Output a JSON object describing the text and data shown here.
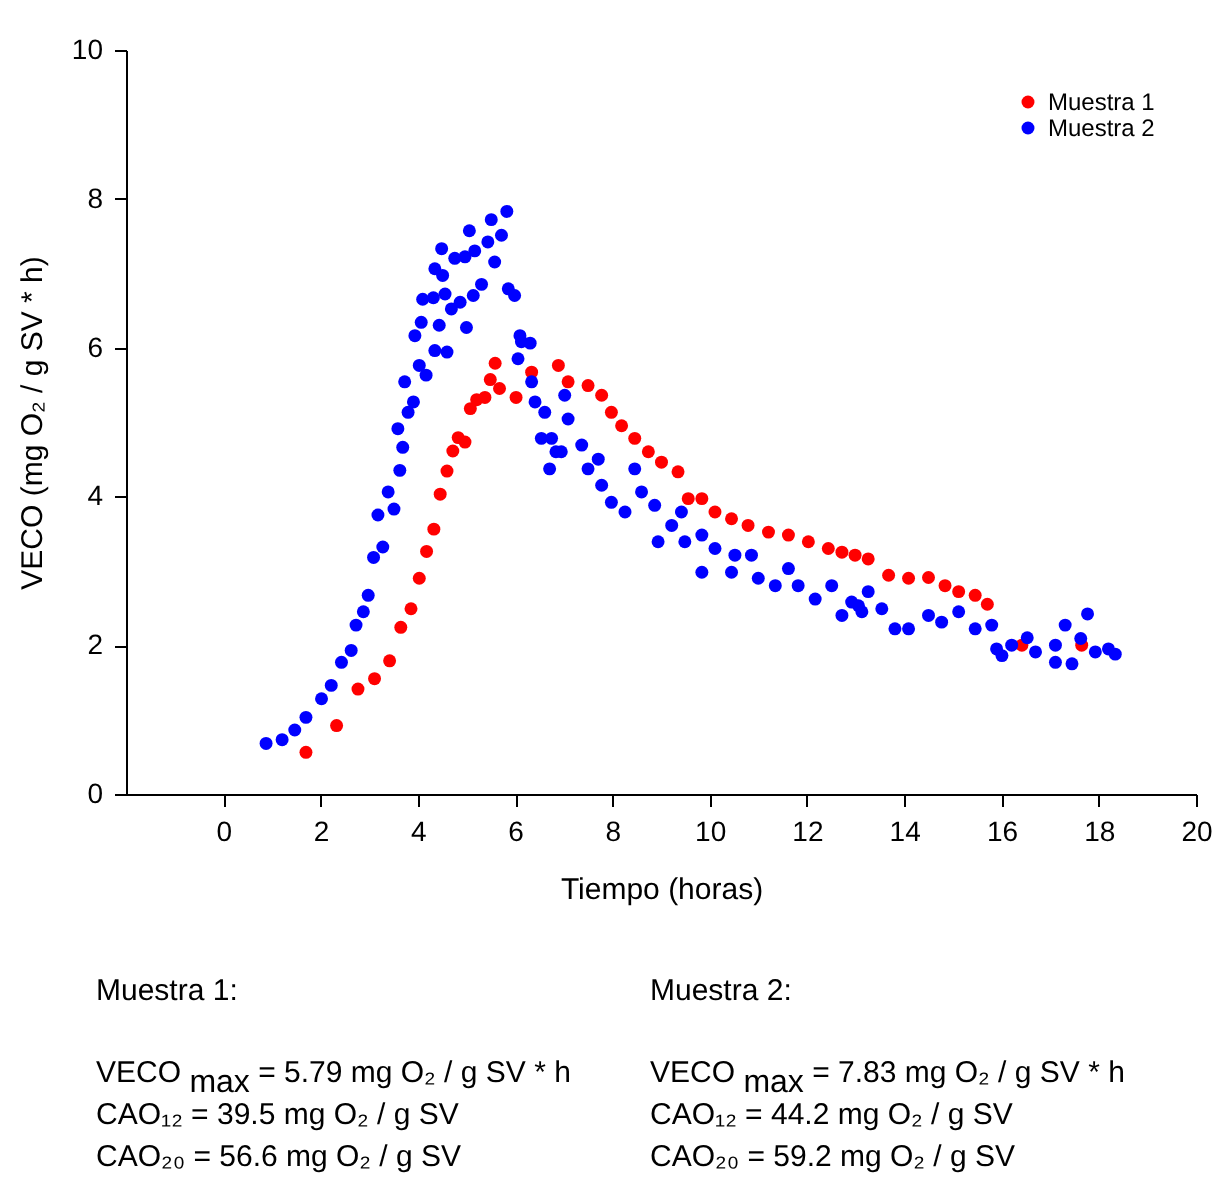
{
  "chart_data": {
    "type": "scatter",
    "xlabel": "Tiempo (horas)",
    "ylabel": "VECO (mg O₂ / g SV * h)",
    "xlim": [
      -2,
      20
    ],
    "xticks": [
      0,
      2,
      4,
      6,
      8,
      10,
      12,
      14,
      16,
      18,
      20
    ],
    "ylim": [
      0,
      10
    ],
    "yticks": [
      0,
      2,
      4,
      6,
      8,
      10
    ],
    "grid": false,
    "legend": "top right",
    "marker": "circle",
    "series": [
      {
        "name": "Muestra 1",
        "color": "#ff0000",
        "x": [
          1.7,
          2.33,
          2.77,
          3.11,
          3.42,
          3.65,
          3.86,
          4.03,
          4.18,
          4.33,
          4.46,
          4.6,
          4.72,
          4.83,
          4.97,
          5.08,
          5.21,
          5.38,
          5.49,
          5.59,
          5.68,
          6.02,
          6.34,
          6.89,
          7.09,
          7.5,
          7.78,
          7.98,
          8.19,
          8.46,
          8.74,
          9.01,
          9.35,
          9.56,
          9.84,
          10.11,
          10.45,
          10.79,
          11.21,
          11.62,
          12.03,
          12.44,
          12.72,
          12.99,
          13.26,
          13.68,
          14.09,
          14.5,
          14.84,
          15.12,
          15.46,
          15.71,
          16.42,
          17.65
        ],
        "values": [
          0.56,
          0.92,
          1.41,
          1.55,
          1.79,
          2.24,
          2.49,
          2.9,
          3.26,
          3.56,
          4.03,
          4.34,
          4.61,
          4.79,
          4.73,
          5.18,
          5.3,
          5.33,
          5.57,
          5.79,
          5.45,
          5.33,
          5.67,
          5.76,
          5.54,
          5.49,
          5.36,
          5.13,
          4.95,
          4.78,
          4.6,
          4.46,
          4.33,
          3.97,
          3.97,
          3.79,
          3.7,
          3.61,
          3.52,
          3.48,
          3.39,
          3.3,
          3.25,
          3.21,
          3.16,
          2.94,
          2.9,
          2.91,
          2.8,
          2.72,
          2.67,
          2.55,
          2.0,
          2.0
        ]
      },
      {
        "name": "Muestra 2",
        "color": "#0000ff",
        "x": [
          0.88,
          1.21,
          1.47,
          1.7,
          2.02,
          2.22,
          2.43,
          2.63,
          2.73,
          2.88,
          2.98,
          3.09,
          3.18,
          3.28,
          3.39,
          3.51,
          3.59,
          3.63,
          3.69,
          3.73,
          3.8,
          3.91,
          3.94,
          4.03,
          4.07,
          4.1,
          4.17,
          4.32,
          4.35,
          4.35,
          4.44,
          4.49,
          4.51,
          4.56,
          4.6,
          4.69,
          4.76,
          4.87,
          4.97,
          5.0,
          5.06,
          5.14,
          5.17,
          5.31,
          5.44,
          5.51,
          5.58,
          5.72,
          5.83,
          5.86,
          5.99,
          6.06,
          6.1,
          6.13,
          6.31,
          6.34,
          6.41,
          6.54,
          6.61,
          6.71,
          6.75,
          6.84,
          6.95,
          7.02,
          7.09,
          7.37,
          7.5,
          7.71,
          7.78,
          7.98,
          8.26,
          8.46,
          8.6,
          8.87,
          8.94,
          9.22,
          9.42,
          9.49,
          9.84,
          9.84,
          10.11,
          10.45,
          10.52,
          10.86,
          11.0,
          11.35,
          11.62,
          11.82,
          12.17,
          12.51,
          12.72,
          12.92,
          13.06,
          13.13,
          13.26,
          13.54,
          13.81,
          14.09,
          14.5,
          14.77,
          15.12,
          15.46,
          15.8,
          15.9,
          16.01,
          16.21,
          16.53,
          16.7,
          17.11,
          17.11,
          17.31,
          17.45,
          17.63,
          17.77,
          17.93,
          18.2,
          18.34
        ],
        "values": [
          0.68,
          0.73,
          0.86,
          1.03,
          1.28,
          1.46,
          1.77,
          1.93,
          2.27,
          2.45,
          2.67,
          3.18,
          3.75,
          3.32,
          4.06,
          3.83,
          4.91,
          4.35,
          4.66,
          5.54,
          5.13,
          5.27,
          6.16,
          5.76,
          6.34,
          6.65,
          5.63,
          6.67,
          5.96,
          7.06,
          6.3,
          7.33,
          6.97,
          6.72,
          5.94,
          6.52,
          7.2,
          6.61,
          7.22,
          6.27,
          7.57,
          6.7,
          7.3,
          6.85,
          7.42,
          7.72,
          7.15,
          7.51,
          7.83,
          6.79,
          6.7,
          5.85,
          6.16,
          6.08,
          6.06,
          5.54,
          5.27,
          4.78,
          5.13,
          4.37,
          4.78,
          4.6,
          4.6,
          5.36,
          5.04,
          4.69,
          4.37,
          4.5,
          4.15,
          3.92,
          3.79,
          4.37,
          4.06,
          3.88,
          3.39,
          3.61,
          3.79,
          3.39,
          2.98,
          3.48,
          3.3,
          2.98,
          3.21,
          3.21,
          2.9,
          2.8,
          3.03,
          2.8,
          2.62,
          2.8,
          2.4,
          2.58,
          2.53,
          2.45,
          2.72,
          2.49,
          2.22,
          2.22,
          2.4,
          2.31,
          2.45,
          2.22,
          2.27,
          1.95,
          1.86,
          2.0,
          2.1,
          1.91,
          1.77,
          2.0,
          2.27,
          1.75,
          2.09,
          2.42,
          1.91,
          1.95,
          1.88
        ]
      }
    ],
    "annotations": [
      "Muestra 1:",
      "VECO $_{max}$ = 5.79 mg O₂ / g SV * h",
      "CAO₁₂ = 39.5 mg O₂ / g SV",
      "CAO₂₀ = 56.6 mg O₂ / g SV",
      "Muestra 2:",
      "VECO $_{max}$ = 7.83 mg O₂ / g SV * h",
      "CAO₁₂ = 44.2 mg O₂ / g SV",
      "CAO₂₀ = 59.2 mg O₂ / g SV"
    ]
  }
}
